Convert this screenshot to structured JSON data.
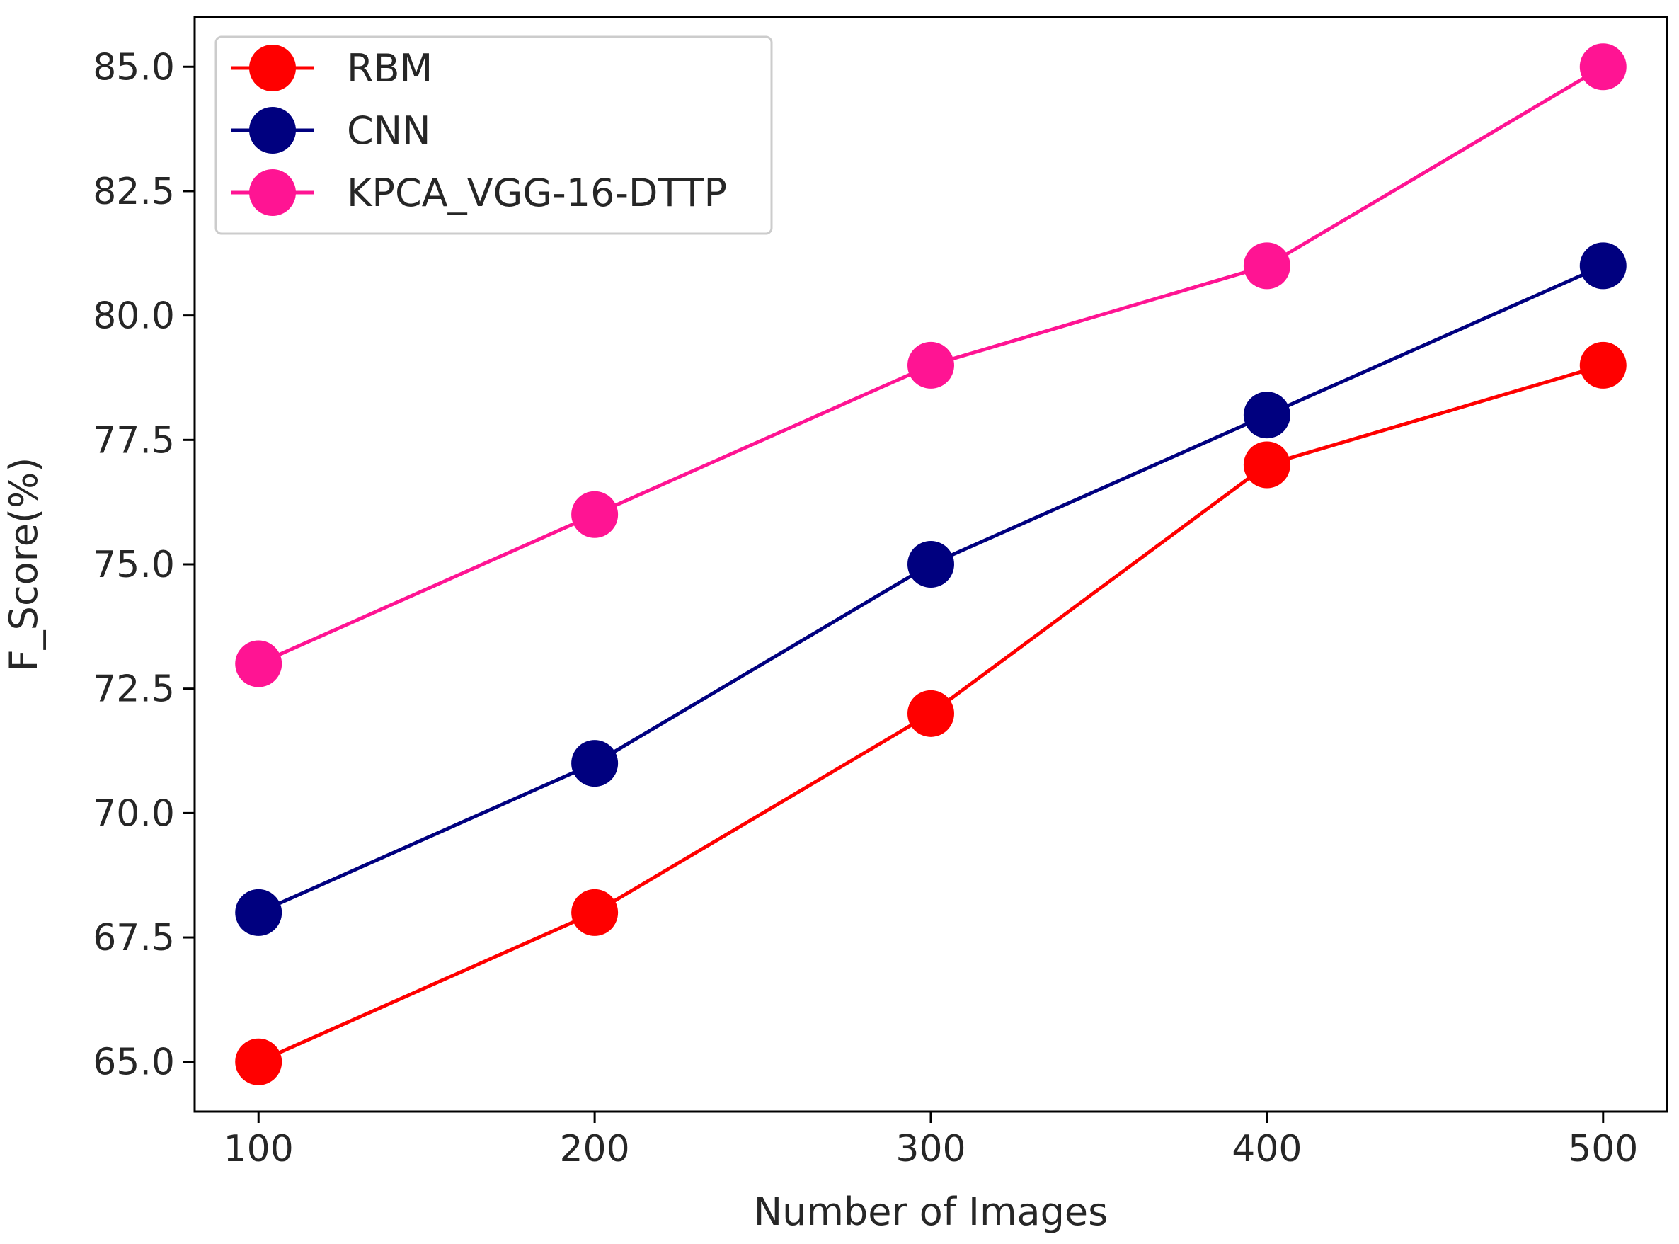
{
  "chart_data": {
    "type": "line",
    "title": "",
    "xlabel": "Number of Images",
    "ylabel": "F_Score(%)",
    "x": [
      100,
      200,
      300,
      400,
      500
    ],
    "x_tick_labels": [
      "100",
      "200",
      "300",
      "400",
      "500"
    ],
    "xlim": [
      81,
      519
    ],
    "ylim": [
      64.0,
      86.0
    ],
    "y_ticks": [
      65.0,
      67.5,
      70.0,
      72.5,
      75.0,
      77.5,
      80.0,
      82.5,
      85.0
    ],
    "y_tick_labels": [
      "65.0",
      "67.5",
      "70.0",
      "72.5",
      "75.0",
      "77.5",
      "80.0",
      "82.5",
      "85.0"
    ],
    "grid": false,
    "legend_position": "top-left",
    "series": [
      {
        "name": "RBM",
        "color": "#ff0000",
        "values": [
          65,
          68,
          72,
          77,
          79
        ]
      },
      {
        "name": "CNN",
        "color": "#00007f",
        "values": [
          68,
          71,
          75,
          78,
          81
        ]
      },
      {
        "name": "KPCA_VGG-16-DTTP",
        "color": "#ff1493",
        "values": [
          73,
          76,
          79,
          81,
          85
        ]
      }
    ]
  }
}
